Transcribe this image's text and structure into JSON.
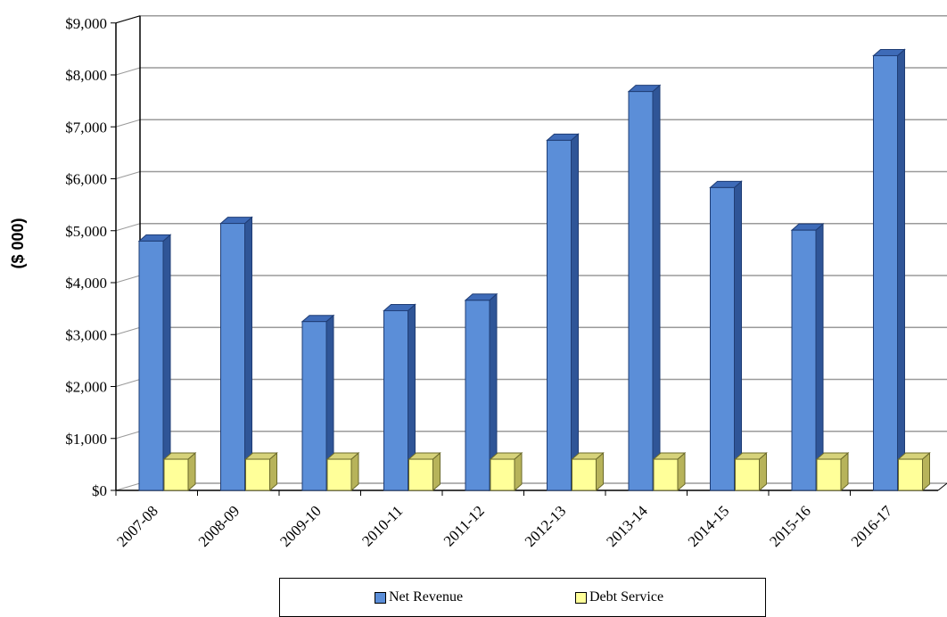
{
  "chart_data": {
    "type": "bar",
    "categories": [
      "2007-08",
      "2008-09",
      "2009-10",
      "2010-11",
      "2011-12",
      "2012-13",
      "2013-14",
      "2014-15",
      "2015-16",
      "2016-17"
    ],
    "series": [
      {
        "name": "Net Revenue",
        "values": [
          4800,
          5140,
          3250,
          3460,
          3660,
          6740,
          7680,
          5830,
          5010,
          8370
        ],
        "color": "#5b8ed8"
      },
      {
        "name": "Debt Service",
        "values": [
          600,
          600,
          600,
          600,
          600,
          600,
          600,
          600,
          600,
          600
        ],
        "color": "#ffff99"
      }
    ],
    "ylabel": "($ 000)",
    "ylim": [
      0,
      9000
    ],
    "yticks": [
      0,
      1000,
      2000,
      3000,
      4000,
      5000,
      6000,
      7000,
      8000,
      9000
    ],
    "ytick_labels": [
      "$0",
      "$1,000",
      "$2,000",
      "$3,000",
      "$4,000",
      "$5,000",
      "$6,000",
      "$7,000",
      "$8,000",
      "$9,000"
    ],
    "grid": true,
    "legend_position": "bottom"
  }
}
